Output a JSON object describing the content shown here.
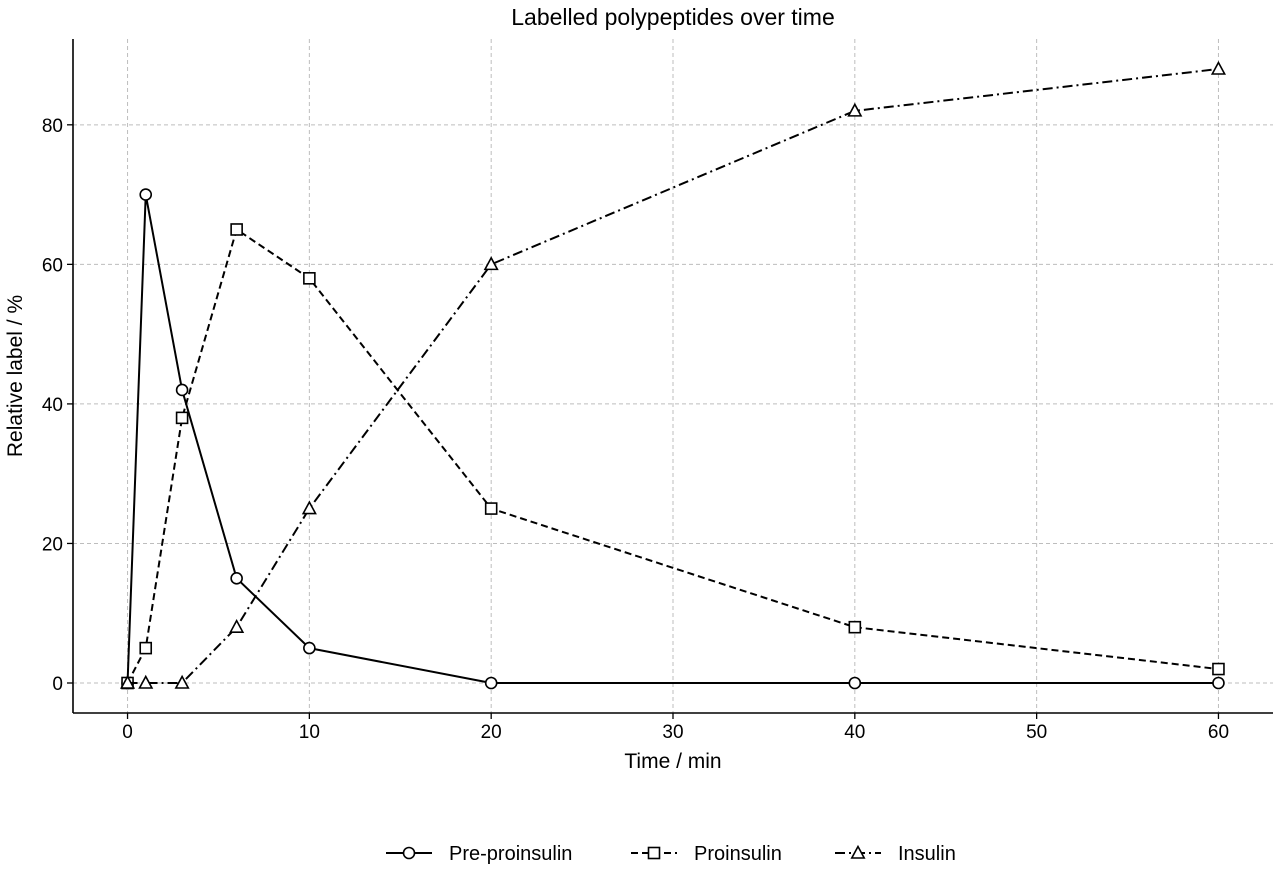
{
  "chart_data": {
    "type": "line",
    "title": "Labelled polypeptides over time",
    "xlabel": "Time / min",
    "ylabel": "Relative label / %",
    "xlim": [
      -3,
      63
    ],
    "ylim": [
      -4.3,
      92.3
    ],
    "xticks": [
      0,
      10,
      20,
      30,
      40,
      50,
      60
    ],
    "yticks": [
      0,
      20,
      40,
      60,
      80
    ],
    "grid": true,
    "legend_position": "bottom-center",
    "x": [
      0,
      1,
      3,
      6,
      10,
      20,
      40,
      60
    ],
    "series": [
      {
        "name": "Pre-proinsulin",
        "values": [
          0,
          70,
          42,
          15,
          5,
          0,
          0,
          0
        ],
        "marker": "circle",
        "line_style": "solid",
        "color": "#000000"
      },
      {
        "name": "Proinsulin",
        "values": [
          0,
          5,
          38,
          65,
          58,
          25,
          8,
          2
        ],
        "marker": "square",
        "line_style": "dashed",
        "color": "#000000"
      },
      {
        "name": "Insulin",
        "values": [
          0,
          0,
          0,
          8,
          25,
          60,
          82,
          88
        ],
        "marker": "triangle",
        "line_style": "dashdot",
        "color": "#000000"
      }
    ]
  }
}
